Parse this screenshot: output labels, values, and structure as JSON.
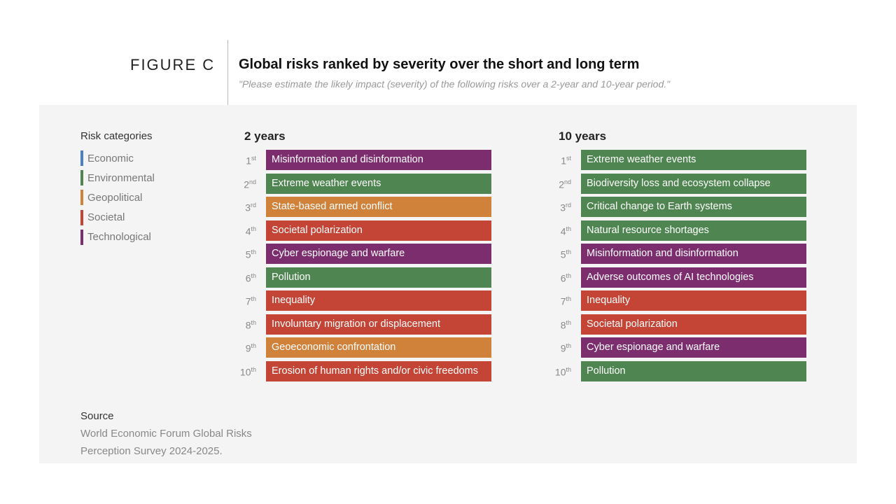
{
  "figure_label": "FIGURE C",
  "chart_data": {
    "type": "table",
    "title": "Global risks ranked by severity over the short and long term",
    "subtitle": "\"Please estimate the likely impact (severity) of the following risks over a 2-year and 10-year period.\"",
    "legend": {
      "title": "Risk categories",
      "items": [
        {
          "name": "Economic",
          "color": "#4a7fc9"
        },
        {
          "name": "Environmental",
          "color": "#4e8550"
        },
        {
          "name": "Geopolitical",
          "color": "#d0813a"
        },
        {
          "name": "Societal",
          "color": "#c44536"
        },
        {
          "name": "Technological",
          "color": "#7b2d6e"
        }
      ]
    },
    "columns": [
      {
        "header": "2 years",
        "rows": [
          {
            "rank": "1",
            "suffix": "st",
            "risk": "Misinformation and disinformation",
            "category": "Technological"
          },
          {
            "rank": "2",
            "suffix": "nd",
            "risk": "Extreme weather events",
            "category": "Environmental"
          },
          {
            "rank": "3",
            "suffix": "rd",
            "risk": "State-based armed conflict",
            "category": "Geopolitical"
          },
          {
            "rank": "4",
            "suffix": "th",
            "risk": "Societal polarization",
            "category": "Societal"
          },
          {
            "rank": "5",
            "suffix": "th",
            "risk": "Cyber espionage and warfare",
            "category": "Technological"
          },
          {
            "rank": "6",
            "suffix": "th",
            "risk": "Pollution",
            "category": "Environmental"
          },
          {
            "rank": "7",
            "suffix": "th",
            "risk": "Inequality",
            "category": "Societal"
          },
          {
            "rank": "8",
            "suffix": "th",
            "risk": "Involuntary migration or displacement",
            "category": "Societal"
          },
          {
            "rank": "9",
            "suffix": "th",
            "risk": "Geoeconomic confrontation",
            "category": "Geopolitical"
          },
          {
            "rank": "10",
            "suffix": "th",
            "risk": "Erosion of human rights and/or civic freedoms",
            "category": "Societal"
          }
        ]
      },
      {
        "header": "10 years",
        "rows": [
          {
            "rank": "1",
            "suffix": "st",
            "risk": "Extreme weather events",
            "category": "Environmental"
          },
          {
            "rank": "2",
            "suffix": "nd",
            "risk": "Biodiversity loss and ecosystem collapse",
            "category": "Environmental"
          },
          {
            "rank": "3",
            "suffix": "rd",
            "risk": "Critical change to Earth systems",
            "category": "Environmental"
          },
          {
            "rank": "4",
            "suffix": "th",
            "risk": "Natural resource shortages",
            "category": "Environmental"
          },
          {
            "rank": "5",
            "suffix": "th",
            "risk": "Misinformation and disinformation",
            "category": "Technological"
          },
          {
            "rank": "6",
            "suffix": "th",
            "risk": "Adverse outcomes of AI technologies",
            "category": "Technological"
          },
          {
            "rank": "7",
            "suffix": "th",
            "risk": "Inequality",
            "category": "Societal"
          },
          {
            "rank": "8",
            "suffix": "th",
            "risk": "Societal polarization",
            "category": "Societal"
          },
          {
            "rank": "9",
            "suffix": "th",
            "risk": "Cyber espionage and warfare",
            "category": "Technological"
          },
          {
            "rank": "10",
            "suffix": "th",
            "risk": "Pollution",
            "category": "Environmental"
          }
        ]
      }
    ]
  },
  "source": {
    "title": "Source",
    "line1": "World Economic Forum Global Risks",
    "line2": "Perception Survey 2024-2025."
  }
}
